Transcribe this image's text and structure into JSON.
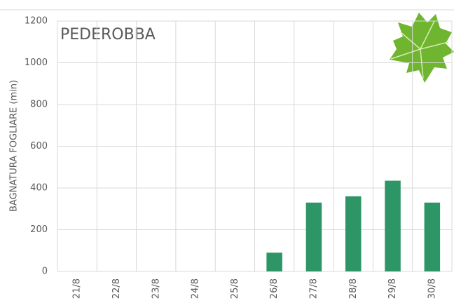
{
  "chart_data": {
    "type": "bar",
    "title": "PEDEROBBA",
    "y_label": "BAGNATURA FOGLIARE (min)",
    "categories": [
      "21/8",
      "22/8",
      "23/8",
      "24/8",
      "25/8",
      "26/8",
      "27/8",
      "28/8",
      "29/8",
      "30/8"
    ],
    "values": [
      0,
      0,
      0,
      0,
      0,
      90,
      330,
      360,
      435,
      330
    ],
    "color": "#2e9666",
    "ylim": [
      0,
      1200
    ],
    "yticks": [
      0,
      200,
      400,
      600,
      800,
      1000,
      1200
    ],
    "grid": true
  }
}
